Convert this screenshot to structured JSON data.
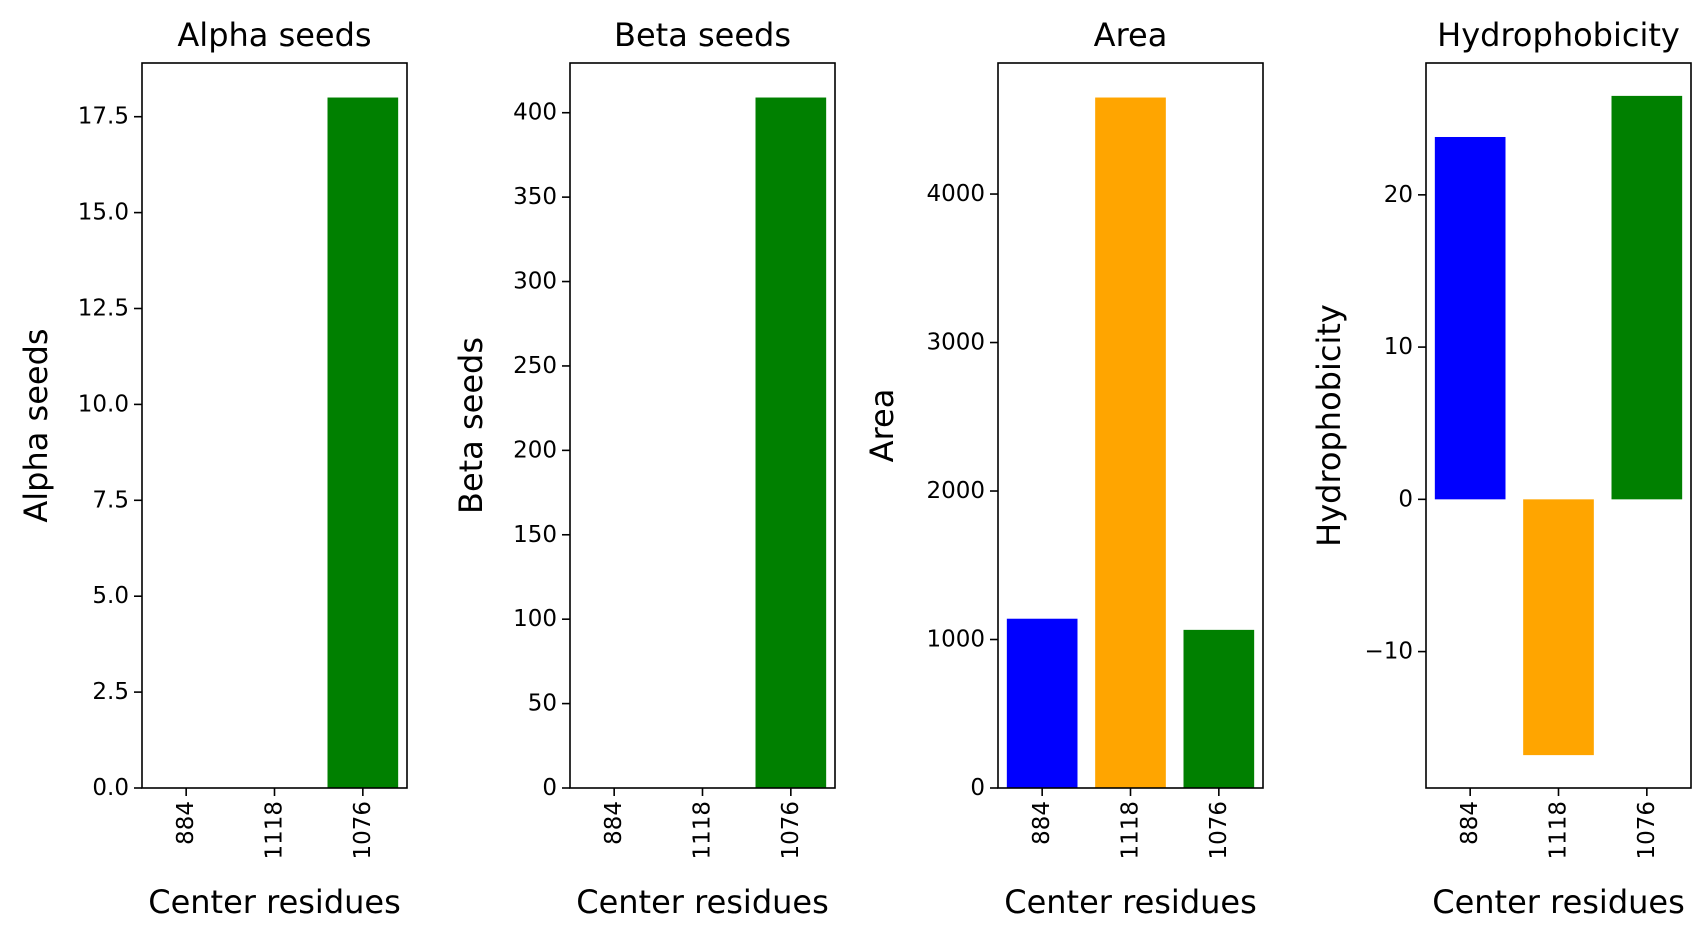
{
  "chart_data": [
    {
      "type": "bar",
      "title": "Alpha seeds",
      "xlabel": "Center residues",
      "ylabel": "Alpha seeds",
      "categories": [
        "884",
        "1118",
        "1076"
      ],
      "values": [
        0,
        0,
        18
      ],
      "colors": [
        "#0000ff",
        "#ffa500",
        "#008000"
      ],
      "ylim": [
        0,
        18.9
      ],
      "yticks": [
        0,
        2.5,
        5,
        7.5,
        10,
        12.5,
        15,
        17.5
      ],
      "ytick_labels": [
        "0.0",
        "2.5",
        "5.0",
        "7.5",
        "10.0",
        "12.5",
        "15.0",
        "17.5"
      ],
      "grid": false
    },
    {
      "type": "bar",
      "title": "Beta seeds",
      "xlabel": "Center residues",
      "ylabel": "Beta seeds",
      "categories": [
        "884",
        "1118",
        "1076"
      ],
      "values": [
        0,
        0,
        409
      ],
      "colors": [
        "#0000ff",
        "#ffa500",
        "#008000"
      ],
      "ylim": [
        0,
        429.45
      ],
      "yticks": [
        0,
        50,
        100,
        150,
        200,
        250,
        300,
        350,
        400
      ],
      "ytick_labels": [
        "0",
        "50",
        "100",
        "150",
        "200",
        "250",
        "300",
        "350",
        "400"
      ],
      "grid": false
    },
    {
      "type": "bar",
      "title": "Area",
      "xlabel": "Center residues",
      "ylabel": "Area",
      "categories": [
        "884",
        "1118",
        "1076"
      ],
      "values": [
        1140,
        4650,
        1065
      ],
      "colors": [
        "#0000ff",
        "#ffa500",
        "#008000"
      ],
      "ylim": [
        0,
        4882.5
      ],
      "yticks": [
        0,
        1000,
        2000,
        3000,
        4000
      ],
      "ytick_labels": [
        "0",
        "1000",
        "2000",
        "3000",
        "4000"
      ],
      "grid": false
    },
    {
      "type": "bar",
      "title": "Hydrophobicity",
      "xlabel": "Center residues",
      "ylabel": "Hydrophobicity",
      "categories": [
        "884",
        "1118",
        "1076"
      ],
      "values": [
        23.8,
        -16.8,
        26.5
      ],
      "colors": [
        "#0000ff",
        "#ffa500",
        "#008000"
      ],
      "ylim": [
        -18.96,
        28.66
      ],
      "yticks": [
        -10,
        0,
        10,
        20
      ],
      "ytick_labels": [
        "−10",
        "0",
        "10",
        "20"
      ],
      "grid": false
    }
  ]
}
